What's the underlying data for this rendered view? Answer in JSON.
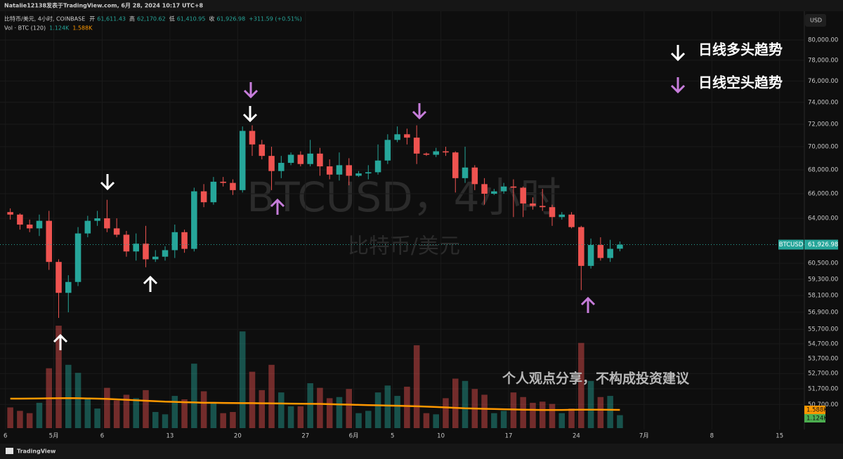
{
  "header": {
    "author_line": "Natalie12138发表于TradingView.com, 6月 28, 2024 10:17 UTC+8",
    "currency": "USD",
    "footer_logo": "TradingView"
  },
  "chart_data": {
    "type": "candlestick",
    "ohlc_legend": {
      "symbol": "比特币/美元, 4小时, COINBASE",
      "items": [
        {
          "name": "开",
          "value": "61,611.43"
        },
        {
          "name": "高",
          "value": "62,170.62"
        },
        {
          "name": "低",
          "value": "61,410.95"
        },
        {
          "name": "收",
          "value": "61,926.98"
        }
      ],
      "change": "+311.59 (+0.51%)"
    },
    "volume_legend": "Vol · BTC (120)",
    "watermark": {
      "title": "BTCUSD，4小时",
      "subtitle": "比特币/美元"
    },
    "annotations": {
      "bull": "日线多头趋势",
      "bear": "日线空头趋势",
      "disclaimer": "个人观点分享，不构成投资建议"
    },
    "up_color": "#26a69a",
    "down_color": "#ef5350",
    "ma_color": "#ff9800",
    "grid": true,
    "log_scale": true,
    "categories": [
      null,
      null,
      null,
      null,
      null,
      null,
      null,
      null,
      null,
      null,
      null,
      null,
      null,
      null,
      null,
      null,
      null,
      null,
      null,
      null,
      null,
      null,
      null,
      null,
      null,
      null,
      null,
      null,
      null,
      null,
      null,
      null,
      null,
      null,
      null,
      null,
      null,
      null,
      null,
      null,
      null,
      null,
      null,
      null,
      null,
      null,
      null,
      null,
      null,
      null,
      null,
      null,
      null,
      null,
      null,
      null,
      null,
      null,
      null,
      null,
      null,
      null,
      null,
      null
    ],
    "open": [
      64500,
      64300,
      63500,
      63200,
      63800,
      60600,
      58300,
      59100,
      62800,
      63800,
      64000,
      63200,
      62700,
      61400,
      62000,
      60800,
      61000,
      61500,
      62900,
      61600,
      66200,
      65300,
      67000,
      66900,
      66300,
      71400,
      70200,
      69200,
      67900,
      68600,
      69300,
      68500,
      69400,
      68300,
      67600,
      68400,
      67500,
      67700,
      67800,
      68800,
      70600,
      71100,
      70800,
      69400,
      69300,
      69600,
      69500,
      67300,
      68200,
      66800,
      66000,
      66200,
      66600,
      66500,
      65200,
      65000,
      64900,
      64100,
      64300,
      63300,
      60300,
      61900,
      60900,
      61611.43
    ],
    "high": [
      64800,
      64400,
      63900,
      64300,
      64600,
      60800,
      59600,
      63300,
      64200,
      64600,
      65500,
      64000,
      63000,
      62800,
      63400,
      61500,
      61800,
      63500,
      63100,
      66500,
      66800,
      67400,
      67400,
      67200,
      71800,
      71900,
      70600,
      70000,
      69200,
      69500,
      69600,
      70600,
      69900,
      68900,
      69500,
      69000,
      67900,
      68400,
      70200,
      71100,
      71800,
      71600,
      71900,
      69500,
      69900,
      70000,
      69600,
      70000,
      68400,
      67300,
      66400,
      66900,
      67200,
      66600,
      65700,
      66400,
      65100,
      64500,
      64500,
      63400,
      62400,
      62500,
      62300,
      62170.62
    ],
    "low": [
      63900,
      63100,
      62900,
      62600,
      60000,
      56500,
      56900,
      58800,
      62500,
      63400,
      62900,
      62500,
      61000,
      60700,
      60200,
      60600,
      60700,
      60900,
      61300,
      61400,
      64900,
      65100,
      66600,
      65900,
      66100,
      69200,
      68900,
      66300,
      67300,
      68400,
      68300,
      68300,
      67500,
      67200,
      67100,
      66700,
      67400,
      67200,
      67600,
      68500,
      70400,
      70200,
      68500,
      69200,
      69100,
      69200,
      66100,
      66900,
      66300,
      65100,
      65900,
      66000,
      64100,
      64100,
      64700,
      64600,
      63400,
      63900,
      63200,
      58500,
      60100,
      60700,
      60600,
      61410.95
    ],
    "close": [
      64300,
      63500,
      63200,
      63800,
      60600,
      58300,
      59100,
      62800,
      63800,
      64000,
      63200,
      62700,
      61400,
      62000,
      60800,
      61000,
      61500,
      62900,
      61600,
      66200,
      65300,
      67000,
      66900,
      66300,
      71400,
      70200,
      69200,
      67900,
      68600,
      69300,
      68500,
      69400,
      68300,
      67600,
      68400,
      67500,
      67700,
      67800,
      68800,
      70600,
      71100,
      70800,
      69400,
      69300,
      69600,
      69500,
      67300,
      68200,
      66800,
      66000,
      66200,
      66600,
      66500,
      65200,
      65000,
      64900,
      64100,
      64300,
      63300,
      60300,
      61900,
      60900,
      61600,
      61926.98
    ],
    "volume": {
      "values": [
        1800,
        1500,
        1300,
        2200,
        5200,
        8900,
        5500,
        4800,
        2600,
        1700,
        3500,
        2400,
        2900,
        2600,
        3300,
        1400,
        1200,
        2800,
        2500,
        5600,
        3200,
        2200,
        1300,
        1400,
        8400,
        4900,
        3300,
        5500,
        3100,
        1900,
        1900,
        3900,
        3500,
        2600,
        2700,
        3400,
        1300,
        1500,
        3100,
        3700,
        2800,
        3600,
        7200,
        1300,
        1200,
        2600,
        4300,
        4100,
        3400,
        2900,
        1300,
        1500,
        3100,
        2700,
        2200,
        2300,
        2100,
        1300,
        1700,
        7400,
        4100,
        2700,
        2800,
        1124
      ],
      "last_label": "1.124K"
    },
    "volume_ma": {
      "values": [
        2560,
        2560,
        2570,
        2580,
        2590,
        2600,
        2610,
        2600,
        2580,
        2560,
        2540,
        2500,
        2460,
        2420,
        2380,
        2340,
        2300,
        2280,
        2250,
        2230,
        2200,
        2200,
        2190,
        2180,
        2170,
        2170,
        2160,
        2150,
        2140,
        2130,
        2120,
        2110,
        2100,
        2080,
        2060,
        2040,
        2020,
        2000,
        1980,
        1960,
        1940,
        1920,
        1900,
        1870,
        1840,
        1800,
        1760,
        1720,
        1700,
        1680,
        1660,
        1640,
        1620,
        1600,
        1590,
        1580,
        1580,
        1580,
        1590,
        1600,
        1600,
        1600,
        1595,
        1588
      ],
      "last_label": "1.588K"
    },
    "volume_ylim": [
      0,
      10000
    ],
    "price_label": {
      "symbol": "BTCUSD",
      "value": 61926.98,
      "label": "61,926.98"
    },
    "xlim": [
      -0.2,
      82.2
    ],
    "xticks": [
      {
        "value": 0,
        "label": "6"
      },
      {
        "value": 5,
        "label": "5月"
      },
      {
        "value": 10,
        "label": "6"
      },
      {
        "value": 17,
        "label": "13"
      },
      {
        "value": 24,
        "label": "20"
      },
      {
        "value": 31,
        "label": "27"
      },
      {
        "value": 36,
        "label": "6月"
      },
      {
        "value": 40,
        "label": "5"
      },
      {
        "value": 45,
        "label": "10"
      },
      {
        "value": 52,
        "label": "17"
      },
      {
        "value": 59,
        "label": "24"
      },
      {
        "value": 66,
        "label": "7月"
      },
      {
        "value": 73,
        "label": "8"
      },
      {
        "value": 80,
        "label": "15"
      }
    ],
    "ylim": [
      49220,
      84110
    ],
    "yticks": [
      {
        "value": 80000,
        "label": "80,000.00"
      },
      {
        "value": 78000,
        "label": "78,000.00"
      },
      {
        "value": 76000,
        "label": "76,000.00"
      },
      {
        "value": 74000,
        "label": "74,000.00"
      },
      {
        "value": 72000,
        "label": "72,000.00"
      },
      {
        "value": 70000,
        "label": "70,000.00"
      },
      {
        "value": 68000,
        "label": "68,000.00"
      },
      {
        "value": 66000,
        "label": "66,000.00"
      },
      {
        "value": 64000,
        "label": "64,000.00"
      },
      {
        "value": 60500,
        "label": "60,500.00"
      },
      {
        "value": 59300,
        "label": "59,300.00"
      },
      {
        "value": 58100,
        "label": "58,100.00"
      },
      {
        "value": 56900,
        "label": "56,900.00"
      },
      {
        "value": 55700,
        "label": "55,700.00"
      },
      {
        "value": 54700,
        "label": "54,700.00"
      },
      {
        "value": 53700,
        "label": "53,700.00"
      },
      {
        "value": 52700,
        "label": "52,700.00"
      },
      {
        "value": 51700,
        "label": "51,700.00"
      },
      {
        "value": 50700,
        "label": "50,700.00"
      }
    ]
  }
}
